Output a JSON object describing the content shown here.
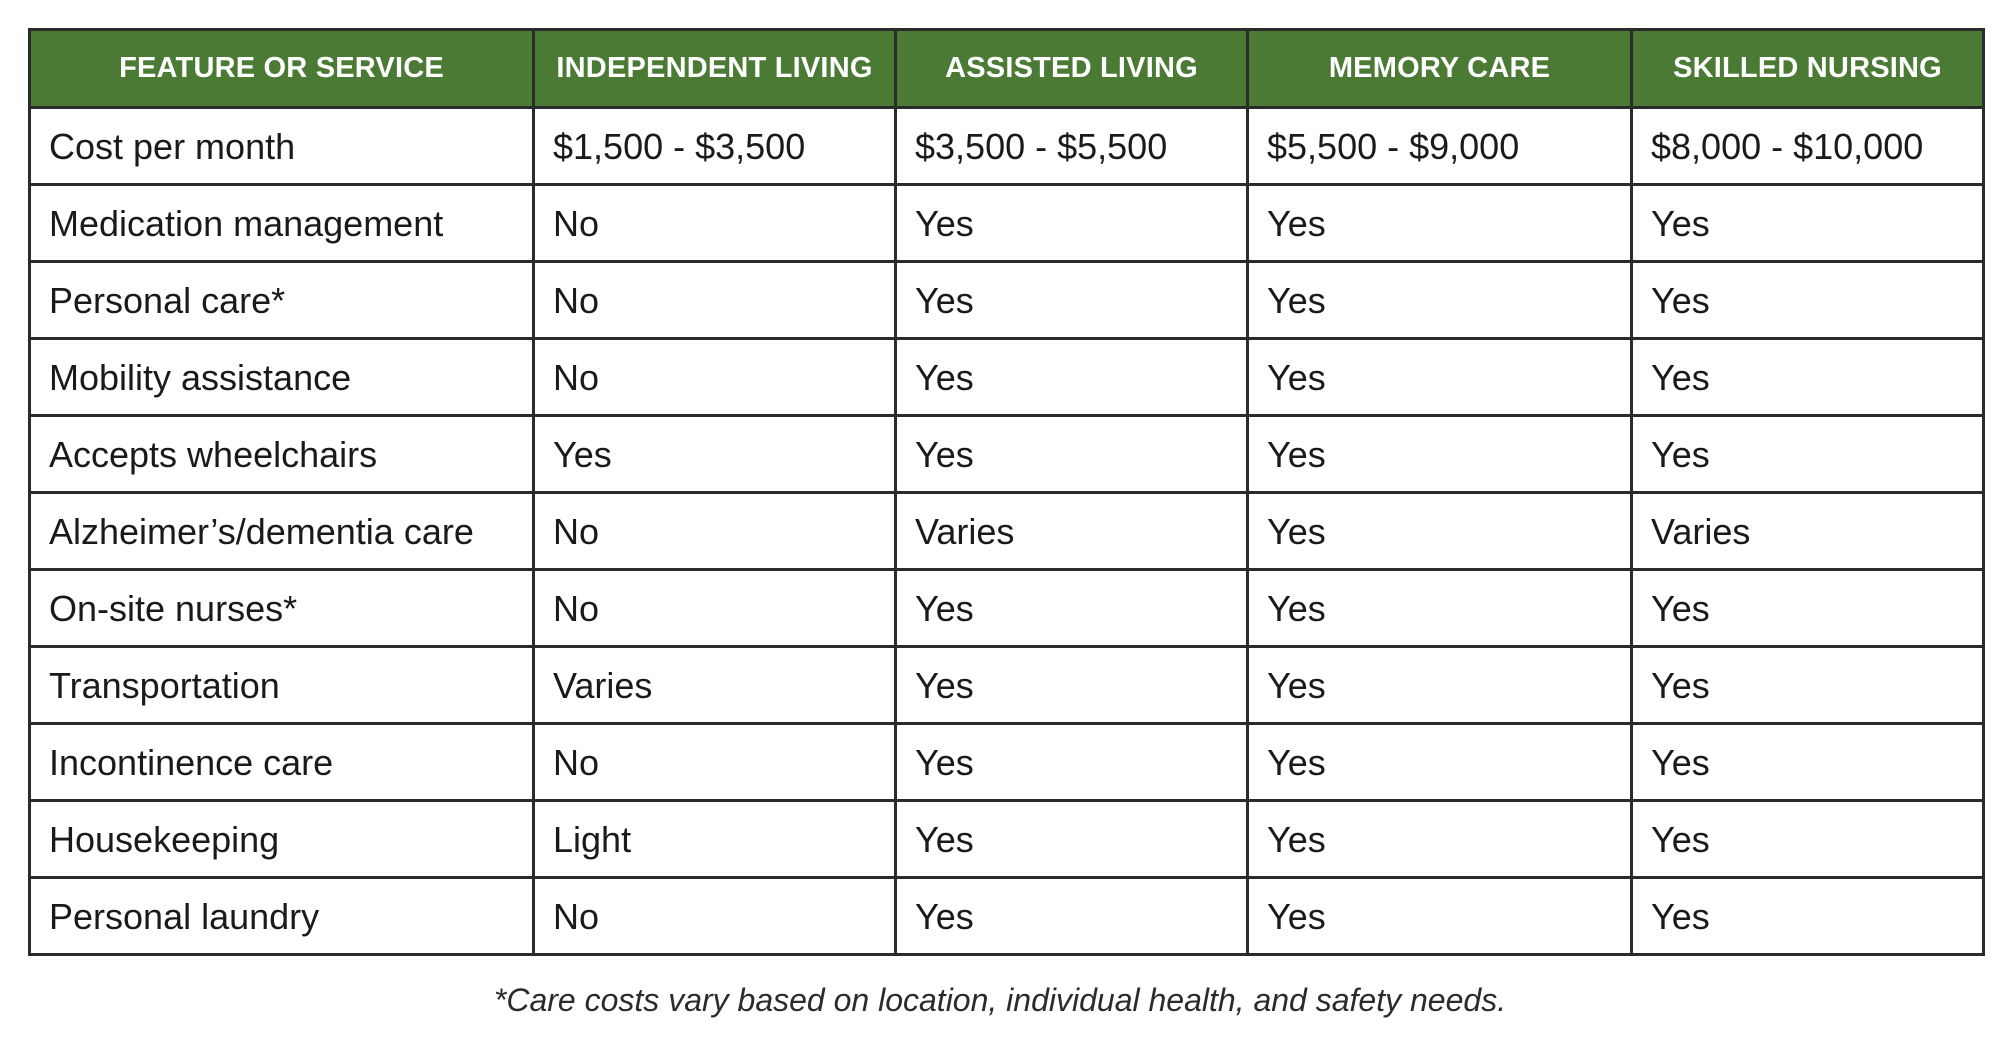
{
  "table": {
    "headers": [
      "FEATURE OR SERVICE",
      "INDEPENDENT LIVING",
      "ASSISTED LIVING",
      "MEMORY CARE",
      "SKILLED NURSING"
    ],
    "rows": [
      [
        "Cost per month",
        "$1,500 - $3,500",
        "$3,500 - $5,500",
        "$5,500 - $9,000",
        "$8,000 - $10,000"
      ],
      [
        "Medication management",
        "No",
        "Yes",
        "Yes",
        "Yes"
      ],
      [
        "Personal care*",
        "No",
        "Yes",
        "Yes",
        "Yes"
      ],
      [
        "Mobility assistance",
        "No",
        "Yes",
        "Yes",
        "Yes"
      ],
      [
        "Accepts wheelchairs",
        "Yes",
        "Yes",
        "Yes",
        "Yes"
      ],
      [
        "Alzheimer’s/dementia care",
        "No",
        "Varies",
        "Yes",
        "Varies"
      ],
      [
        "On-site nurses*",
        "No",
        "Yes",
        "Yes",
        "Yes"
      ],
      [
        "Transportation",
        "Varies",
        "Yes",
        "Yes",
        "Yes"
      ],
      [
        "Incontinence care",
        "No",
        "Yes",
        "Yes",
        "Yes"
      ],
      [
        "Housekeeping",
        "Light",
        "Yes",
        "Yes",
        "Yes"
      ],
      [
        "Personal laundry",
        "No",
        "Yes",
        "Yes",
        "Yes"
      ]
    ]
  },
  "footnote": "*Care costs vary based on location, individual health, and safety needs.",
  "colors": {
    "header_bg": "#4a7a34",
    "header_text": "#ffffff",
    "border": "#2b2b2b",
    "cell_text": "#1a1a1a"
  }
}
